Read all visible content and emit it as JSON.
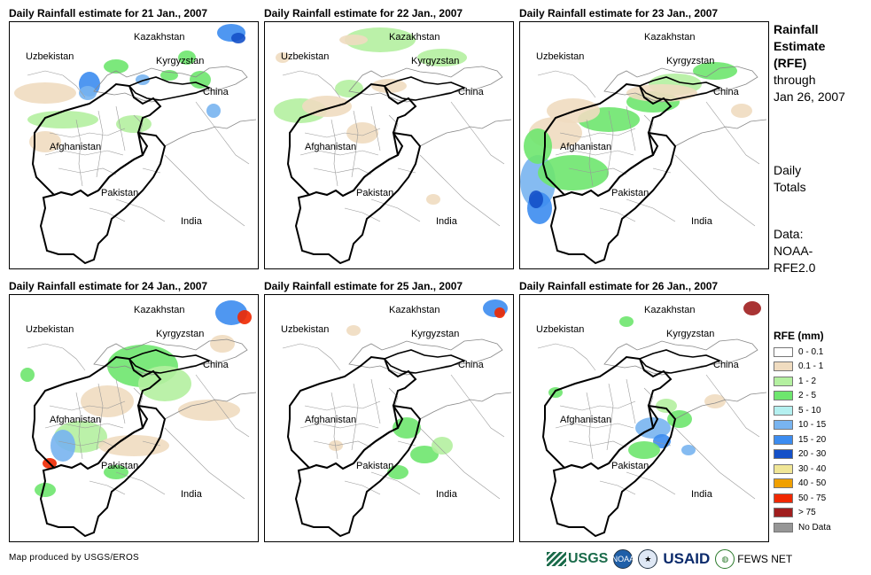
{
  "panels": [
    {
      "title": "Daily Rainfall estimate for 21 Jan., 2007"
    },
    {
      "title": "Daily Rainfall estimate for 22 Jan., 2007"
    },
    {
      "title": "Daily Rainfall estimate for 23 Jan., 2007"
    },
    {
      "title": "Daily Rainfall estimate for 24 Jan., 2007"
    },
    {
      "title": "Daily Rainfall estimate for 25 Jan., 2007"
    },
    {
      "title": "Daily Rainfall estimate for 26 Jan., 2007"
    }
  ],
  "map_labels": {
    "kazakhstan": "Kazakhstan",
    "uzbekistan": "Uzbekistan",
    "kyrgyzstan": "Kyrgyzstan",
    "china": "China",
    "afghanistan": "Afghanistan",
    "pakistan": "Pakistan",
    "india": "India"
  },
  "side": {
    "title_lines": [
      "Rainfall",
      "Estimate",
      "(RFE)"
    ],
    "through": "through",
    "date": "Jan 26, 2007",
    "totals_lines": [
      "Daily",
      "Totals"
    ],
    "data_lines": [
      "Data:",
      "NOAA-",
      "RFE2.0"
    ]
  },
  "legend": {
    "title": "RFE (mm)",
    "items": [
      {
        "label": "0 - 0.1",
        "color": "#ffffff"
      },
      {
        "label": "0.1 - 1",
        "color": "#f0dcc0"
      },
      {
        "label": "1 - 2",
        "color": "#b4f0a0"
      },
      {
        "label": "2 - 5",
        "color": "#6ee66e"
      },
      {
        "label": "5 - 10",
        "color": "#b4f0f0"
      },
      {
        "label": "10 - 15",
        "color": "#78b4f0"
      },
      {
        "label": "15 - 20",
        "color": "#3c8cf0"
      },
      {
        "label": "20 - 30",
        "color": "#1450c8"
      },
      {
        "label": "30 - 40",
        "color": "#f0e696"
      },
      {
        "label": "40 - 50",
        "color": "#f0a000"
      },
      {
        "label": "50 - 75",
        "color": "#f02800"
      },
      {
        "label": "> 75",
        "color": "#a01e1e"
      },
      {
        "label": "No Data",
        "color": "#969696"
      }
    ]
  },
  "credit": "Map produced by USGS/EROS",
  "logos": {
    "usgs": "USGS",
    "noaa": "NOAA",
    "usaid": "USAID",
    "fews": "FEWS NET"
  }
}
